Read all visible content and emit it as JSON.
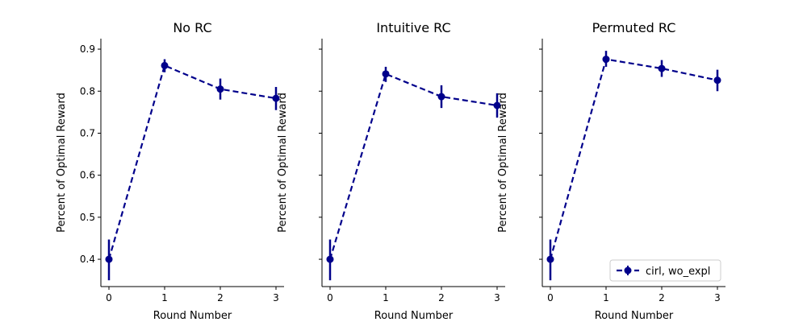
{
  "colors": {
    "series": "#00008b",
    "axis": "#000000",
    "legend_border": "#cccccc"
  },
  "chart_data": [
    {
      "type": "line",
      "title": "No RC",
      "xlabel": "Round Number",
      "ylabel": "Percent of Optimal Reward",
      "x": [
        0,
        1,
        2,
        3
      ],
      "xticks": [
        "0",
        "1",
        "2",
        "3"
      ],
      "yticks": [
        "0.4",
        "0.5",
        "0.6",
        "0.7",
        "0.8",
        "0.9"
      ],
      "ylim": [
        0.335,
        0.925
      ],
      "grid": false,
      "series": [
        {
          "name": "cirl, wo_expl",
          "values": [
            0.4,
            0.861,
            0.805,
            0.783
          ],
          "err_low": [
            0.35,
            0.845,
            0.78,
            0.755
          ],
          "err_high": [
            0.447,
            0.876,
            0.83,
            0.81
          ]
        }
      ]
    },
    {
      "type": "line",
      "title": "Intuitive RC",
      "xlabel": "Round Number",
      "ylabel": "Percent of Optimal Reward",
      "x": [
        0,
        1,
        2,
        3
      ],
      "xticks": [
        "0",
        "1",
        "2",
        "3"
      ],
      "yticks": [],
      "ylim": [
        0.335,
        0.925
      ],
      "grid": false,
      "series": [
        {
          "name": "cirl, wo_expl",
          "values": [
            0.4,
            0.841,
            0.787,
            0.766
          ],
          "err_low": [
            0.35,
            0.822,
            0.76,
            0.737
          ],
          "err_high": [
            0.447,
            0.858,
            0.814,
            0.795
          ]
        }
      ]
    },
    {
      "type": "line",
      "title": "Permuted RC",
      "xlabel": "Round Number",
      "ylabel": "Percent of Optimal Reward",
      "x": [
        0,
        1,
        2,
        3
      ],
      "xticks": [
        "0",
        "1",
        "2",
        "3"
      ],
      "yticks": [],
      "ylim": [
        0.335,
        0.925
      ],
      "grid": false,
      "legend": {
        "placement": "lower right",
        "entries": [
          "cirl, wo_expl"
        ]
      },
      "series": [
        {
          "name": "cirl, wo_expl",
          "values": [
            0.4,
            0.876,
            0.854,
            0.826
          ],
          "err_low": [
            0.35,
            0.858,
            0.834,
            0.8
          ],
          "err_high": [
            0.447,
            0.896,
            0.874,
            0.851
          ]
        }
      ]
    }
  ]
}
